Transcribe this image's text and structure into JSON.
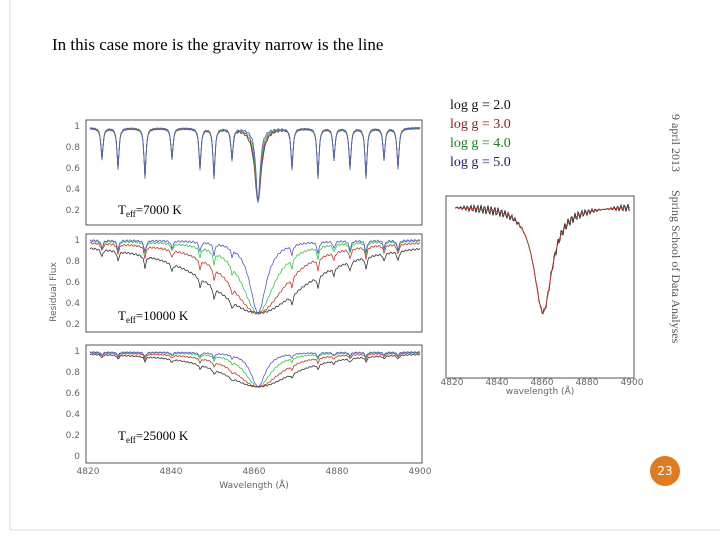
{
  "title": "In this case more is the gravity narrow is the line",
  "legend": [
    "log g = 2.0",
    "log g = 3.0",
    "log g = 4.0",
    "log g = 5.0"
  ],
  "teff_labels": [
    {
      "symbol": "T",
      "subscript": "eff",
      "text": "=7000 K"
    },
    {
      "symbol": "T",
      "subscript": "eff",
      "text": "=10000 K"
    },
    {
      "symbol": "T",
      "subscript": "eff",
      "text": "=25000 K"
    }
  ],
  "left_figure": {
    "y_axis_label": "Residual Flux",
    "x_axis_label": "Wavelength (Å)",
    "x_ticks": [
      "4820",
      "4840",
      "4860",
      "4880",
      "4900"
    ],
    "panels": [
      {
        "y_ticks": [
          "1",
          "0.8",
          "0.6",
          "0.4",
          "0.2"
        ]
      },
      {
        "y_ticks": [
          "1",
          "0.8",
          "0.6",
          "0.4",
          "0.2"
        ]
      },
      {
        "y_ticks": [
          "1",
          "0.8",
          "0.6",
          "0.4",
          "0.2",
          "0"
        ]
      }
    ]
  },
  "right_figure": {
    "x_axis_label": "wavelength (Å)",
    "x_ticks": [
      "4820",
      "4840",
      "4860",
      "4880",
      "4900"
    ]
  },
  "footer": {
    "date": "9 april 2013",
    "event": "Spring School of Data Analyses",
    "page": "23"
  }
}
